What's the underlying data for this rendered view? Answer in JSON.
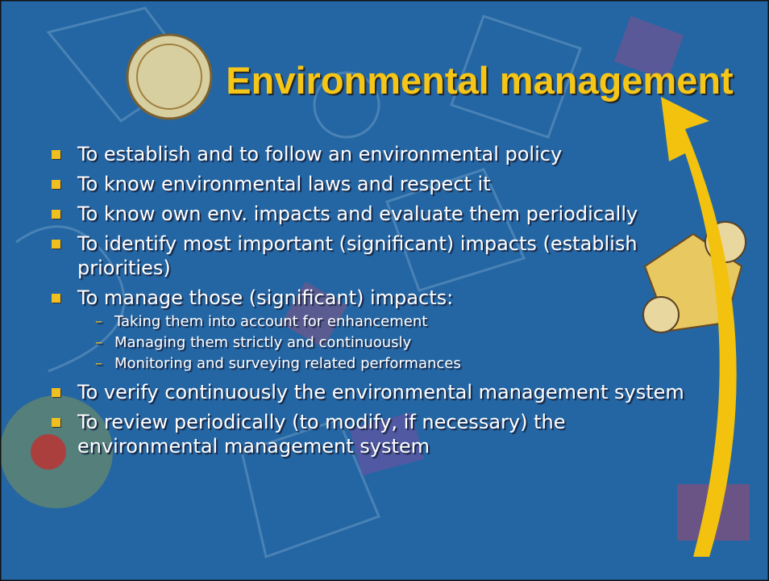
{
  "title": "Environmental management",
  "bullets": [
    {
      "text": "To establish and to follow an environmental policy"
    },
    {
      "text": "To know environmental laws and respect it"
    },
    {
      "text": "To know own env. impacts and evaluate them periodically"
    },
    {
      "text": "To identify most important (significant) impacts (establish priorities)"
    },
    {
      "text": "To manage those (significant) impacts:",
      "sub": [
        "Taking them into account for enhancement",
        "Managing them strictly and continuously",
        "Monitoring and surveying related performances"
      ]
    },
    {
      "text": "To verify continuously the environmental management system"
    },
    {
      "text": "To review periodically (to modify, if necessary) the environmental management system"
    }
  ]
}
